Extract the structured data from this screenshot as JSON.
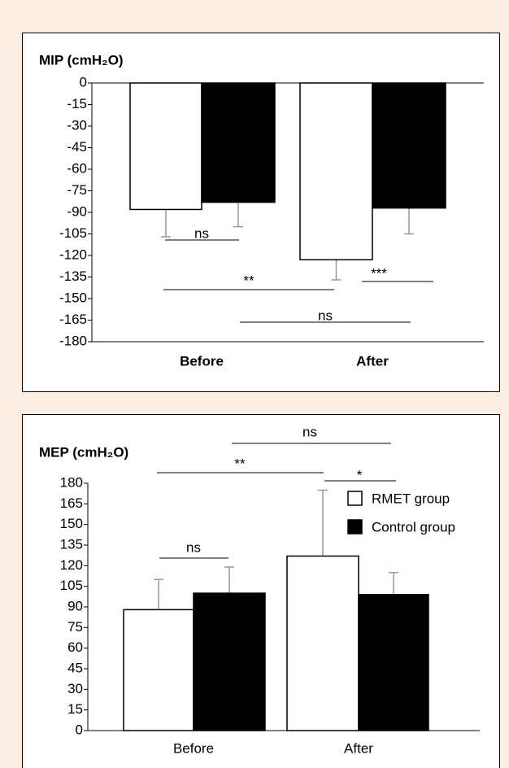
{
  "chart_data": [
    {
      "type": "bar",
      "title": "MIP (cmH₂O)",
      "categories": [
        "Before",
        "After"
      ],
      "series": [
        {
          "color": "#ffffff",
          "values": [
            -88,
            -123
          ],
          "errors": [
            19,
            14
          ]
        },
        {
          "color": "#000000",
          "values": [
            -83,
            -87
          ],
          "errors": [
            17,
            18
          ]
        }
      ],
      "ylim": [
        -180,
        0
      ],
      "yticks": [
        0,
        -15,
        -30,
        -45,
        -60,
        -75,
        -90,
        -105,
        -120,
        -135,
        -150,
        -165,
        -180
      ],
      "annotations": [
        "ns",
        "**",
        "***",
        "ns"
      ]
    },
    {
      "type": "bar",
      "title": "MEP (cmH₂O)",
      "categories": [
        "Before",
        "After"
      ],
      "series": [
        {
          "name": "RMET group",
          "color": "#ffffff",
          "values": [
            88,
            127
          ],
          "errors": [
            22,
            48
          ]
        },
        {
          "name": "Control group",
          "color": "#000000",
          "values": [
            100,
            99
          ],
          "errors": [
            19,
            16
          ]
        }
      ],
      "ylim": [
        0,
        180
      ],
      "yticks": [
        0,
        15,
        30,
        45,
        60,
        75,
        90,
        105,
        120,
        135,
        150,
        165,
        180
      ],
      "annotations": [
        "ns",
        "**",
        "*",
        "ns"
      ],
      "legend": "upper right"
    }
  ]
}
